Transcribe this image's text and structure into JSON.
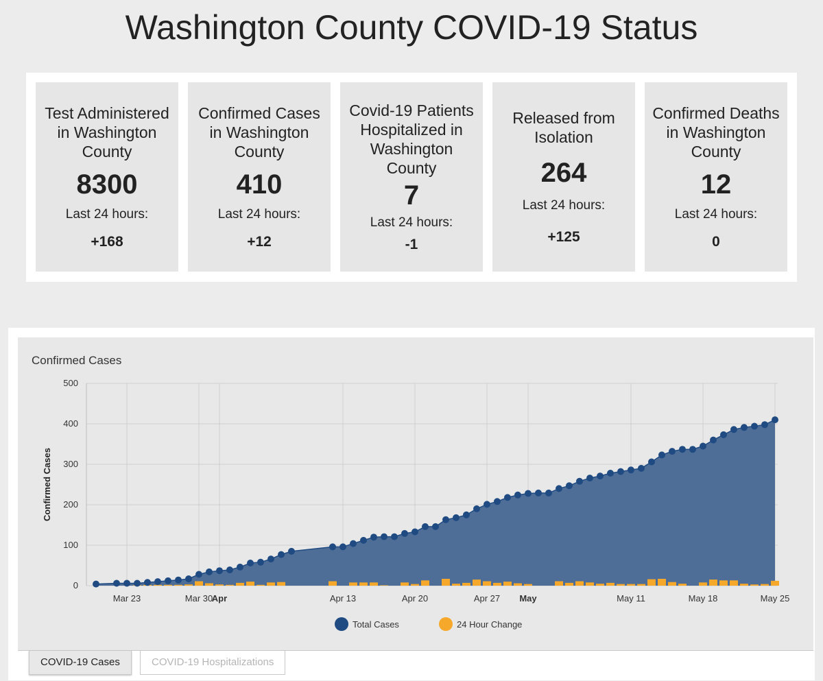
{
  "page": {
    "title": "Washington County COVID-19 Status"
  },
  "stats": [
    {
      "label": "Test Administered in Washington County",
      "value": "8300",
      "sub": "Last 24 hours:",
      "change": "+168"
    },
    {
      "label": "Confirmed Cases in Washington County",
      "value": "410",
      "sub": "Last 24 hours:",
      "change": "+12"
    },
    {
      "label": "Covid-19 Patients Hospitalized in Washington County",
      "value": "7",
      "sub": "Last 24 hours:",
      "change": "-1"
    },
    {
      "label": "Released from Isolation",
      "value": "264",
      "sub": "Last 24 hours:",
      "change": "+125"
    },
    {
      "label": "Confirmed Deaths in Washington County",
      "value": "12",
      "sub": "Last 24 hours:",
      "change": "0"
    }
  ],
  "tabs": {
    "active": "COVID-19 Cases",
    "inactive": "COVID-19 Hospitalizations"
  },
  "chart_data": {
    "type": "area",
    "title": "Confirmed Cases",
    "ylabel": "Confirmed Cases",
    "ylim": [
      0,
      500
    ],
    "yticks": [
      0,
      100,
      200,
      300,
      400,
      500
    ],
    "x_start": "2020-03-20",
    "x_end": "2020-05-25",
    "x_ticks": [
      {
        "date": "2020-03-23",
        "label": "Mar 23",
        "bold": false
      },
      {
        "date": "2020-03-30",
        "label": "Mar 30",
        "bold": false
      },
      {
        "date": "2020-04-01",
        "label": "Apr",
        "bold": true
      },
      {
        "date": "2020-04-13",
        "label": "Apr 13",
        "bold": false
      },
      {
        "date": "2020-04-20",
        "label": "Apr 20",
        "bold": false
      },
      {
        "date": "2020-04-27",
        "label": "Apr 27",
        "bold": false
      },
      {
        "date": "2020-05-01",
        "label": "May",
        "bold": true
      },
      {
        "date": "2020-05-11",
        "label": "May 11",
        "bold": false
      },
      {
        "date": "2020-05-18",
        "label": "May 18",
        "bold": false
      },
      {
        "date": "2020-05-25",
        "label": "May 25",
        "bold": false
      }
    ],
    "grid": true,
    "legend_position": "bottom",
    "colors": {
      "total": "#1f4b82",
      "change": "#f5a82a",
      "area": "#4f6e97"
    },
    "series": [
      {
        "name": "Total Cases",
        "type": "line-area",
        "points": [
          [
            "2020-03-20",
            4
          ],
          [
            "2020-03-22",
            6
          ],
          [
            "2020-03-23",
            6
          ],
          [
            "2020-03-24",
            6
          ],
          [
            "2020-03-25",
            8
          ],
          [
            "2020-03-26",
            10
          ],
          [
            "2020-03-27",
            12
          ],
          [
            "2020-03-28",
            14
          ],
          [
            "2020-03-29",
            17
          ],
          [
            "2020-03-30",
            28
          ],
          [
            "2020-03-31",
            34
          ],
          [
            "2020-04-01",
            37
          ],
          [
            "2020-04-02",
            39
          ],
          [
            "2020-04-03",
            46
          ],
          [
            "2020-04-04",
            56
          ],
          [
            "2020-04-05",
            58
          ],
          [
            "2020-04-06",
            66
          ],
          [
            "2020-04-07",
            77
          ],
          [
            "2020-04-08",
            85
          ],
          [
            "2020-04-12",
            96
          ],
          [
            "2020-04-13",
            96
          ],
          [
            "2020-04-14",
            104
          ],
          [
            "2020-04-15",
            112
          ],
          [
            "2020-04-16",
            120
          ],
          [
            "2020-04-17",
            121
          ],
          [
            "2020-04-18",
            121
          ],
          [
            "2020-04-19",
            129
          ],
          [
            "2020-04-20",
            133
          ],
          [
            "2020-04-21",
            146
          ],
          [
            "2020-04-22",
            146
          ],
          [
            "2020-04-23",
            163
          ],
          [
            "2020-04-24",
            168
          ],
          [
            "2020-04-25",
            175
          ],
          [
            "2020-04-26",
            190
          ],
          [
            "2020-04-27",
            201
          ],
          [
            "2020-04-28",
            208
          ],
          [
            "2020-04-29",
            218
          ],
          [
            "2020-04-30",
            224
          ],
          [
            "2020-05-01",
            228
          ],
          [
            "2020-05-02",
            229
          ],
          [
            "2020-05-03",
            229
          ],
          [
            "2020-05-04",
            240
          ],
          [
            "2020-05-05",
            247
          ],
          [
            "2020-05-06",
            258
          ],
          [
            "2020-05-07",
            266
          ],
          [
            "2020-05-08",
            271
          ],
          [
            "2020-05-09",
            278
          ],
          [
            "2020-05-10",
            282
          ],
          [
            "2020-05-11",
            286
          ],
          [
            "2020-05-12",
            290
          ],
          [
            "2020-05-13",
            306
          ],
          [
            "2020-05-14",
            323
          ],
          [
            "2020-05-15",
            332
          ],
          [
            "2020-05-16",
            337
          ],
          [
            "2020-05-17",
            337
          ],
          [
            "2020-05-18",
            345
          ],
          [
            "2020-05-19",
            360
          ],
          [
            "2020-05-20",
            373
          ],
          [
            "2020-05-21",
            386
          ],
          [
            "2020-05-22",
            391
          ],
          [
            "2020-05-23",
            394
          ],
          [
            "2020-05-24",
            398
          ],
          [
            "2020-05-25",
            410
          ]
        ]
      },
      {
        "name": "24 Hour Change",
        "type": "bar",
        "points": [
          [
            "2020-03-24",
            1
          ],
          [
            "2020-03-25",
            2
          ],
          [
            "2020-03-26",
            2
          ],
          [
            "2020-03-27",
            2
          ],
          [
            "2020-03-28",
            2
          ],
          [
            "2020-03-29",
            3
          ],
          [
            "2020-03-30",
            11
          ],
          [
            "2020-03-31",
            6
          ],
          [
            "2020-04-01",
            3
          ],
          [
            "2020-04-02",
            2
          ],
          [
            "2020-04-03",
            7
          ],
          [
            "2020-04-04",
            10
          ],
          [
            "2020-04-05",
            2
          ],
          [
            "2020-04-06",
            8
          ],
          [
            "2020-04-07",
            9
          ],
          [
            "2020-04-12",
            11
          ],
          [
            "2020-04-13",
            0
          ],
          [
            "2020-04-14",
            8
          ],
          [
            "2020-04-15",
            8
          ],
          [
            "2020-04-16",
            8
          ],
          [
            "2020-04-17",
            1
          ],
          [
            "2020-04-19",
            8
          ],
          [
            "2020-04-20",
            4
          ],
          [
            "2020-04-21",
            13
          ],
          [
            "2020-04-23",
            17
          ],
          [
            "2020-04-24",
            5
          ],
          [
            "2020-04-25",
            7
          ],
          [
            "2020-04-26",
            15
          ],
          [
            "2020-04-27",
            11
          ],
          [
            "2020-04-28",
            7
          ],
          [
            "2020-04-29",
            10
          ],
          [
            "2020-04-30",
            6
          ],
          [
            "2020-05-01",
            4
          ],
          [
            "2020-05-04",
            11
          ],
          [
            "2020-05-05",
            7
          ],
          [
            "2020-05-06",
            11
          ],
          [
            "2020-05-07",
            8
          ],
          [
            "2020-05-08",
            5
          ],
          [
            "2020-05-09",
            7
          ],
          [
            "2020-05-10",
            4
          ],
          [
            "2020-05-11",
            4
          ],
          [
            "2020-05-12",
            4
          ],
          [
            "2020-05-13",
            16
          ],
          [
            "2020-05-14",
            17
          ],
          [
            "2020-05-15",
            9
          ],
          [
            "2020-05-16",
            5
          ],
          [
            "2020-05-18",
            8
          ],
          [
            "2020-05-19",
            15
          ],
          [
            "2020-05-20",
            13
          ],
          [
            "2020-05-21",
            13
          ],
          [
            "2020-05-22",
            5
          ],
          [
            "2020-05-23",
            3
          ],
          [
            "2020-05-24",
            4
          ],
          [
            "2020-05-25",
            12
          ]
        ]
      }
    ]
  }
}
